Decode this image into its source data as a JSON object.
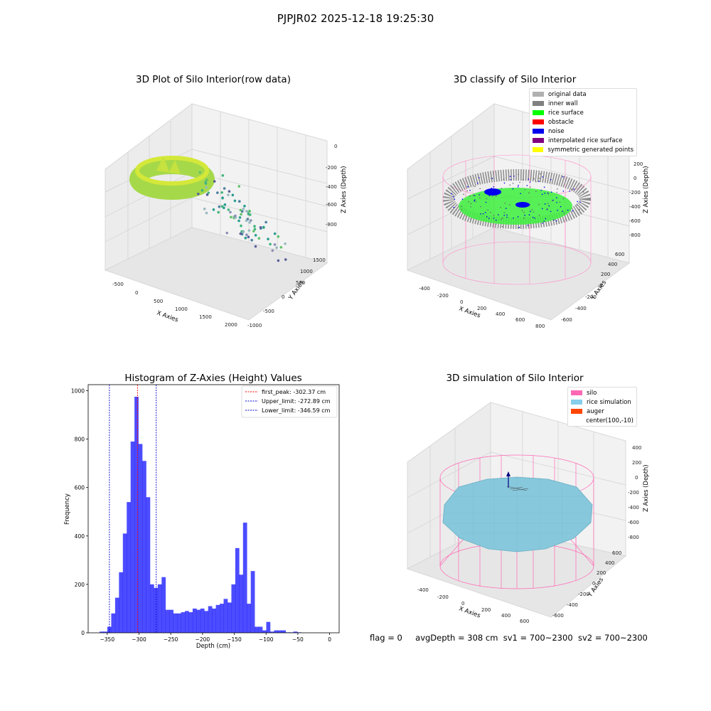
{
  "figure": {
    "title": "PJPJR02 2025-12-18 19:25:30",
    "footer": {
      "flag": "flag = 0",
      "avg": "avgDepth = 308 cm",
      "sv1": "sv1 = 700~2300",
      "sv2": "sv2 = 700~2300"
    }
  },
  "panels": {
    "raw": {
      "title": "3D Plot of Silo Interior(row data)",
      "xlabel": "X Axies",
      "ylabel": "Y Axies",
      "zlabel": "Z Axies (Depth)",
      "xticks": [
        "-500",
        "0",
        "500",
        "1000",
        "1500",
        "2000"
      ],
      "yticks": [
        "-1000",
        "-500",
        "0",
        "500",
        "1000",
        "1500"
      ],
      "zticks": [
        "0",
        "-200",
        "-400",
        "-600",
        "-800"
      ]
    },
    "classify": {
      "title": "3D classify of Silo Interior",
      "xlabel": "X Axies",
      "ylabel": "Y Axies",
      "zlabel": "Z Axies (Depth)",
      "xticks": [
        "-400",
        "-200",
        "0",
        "200",
        "400",
        "600",
        "800"
      ],
      "yticks": [
        "-600",
        "-400",
        "-200",
        "0",
        "200",
        "400",
        "600"
      ],
      "zticks": [
        "200",
        "0",
        "-200",
        "-400",
        "-600",
        "-800"
      ],
      "legend": [
        {
          "label": "original data",
          "color": "#b0b0b0"
        },
        {
          "label": "inner wall",
          "color": "#808080"
        },
        {
          "label": "rice surface",
          "color": "#00ff00"
        },
        {
          "label": "obstacle",
          "color": "#ff0000"
        },
        {
          "label": "noise",
          "color": "#0000ee"
        },
        {
          "label": "interpolated rice surface",
          "color": "#800080"
        },
        {
          "label": "symmetric generated points",
          "color": "#ffff00"
        }
      ]
    },
    "simulation": {
      "title": "3D simulation of Silo Interior",
      "xlabel": "X Axies",
      "ylabel": "Y Axies",
      "zlabel": "Z Axies (Depth)",
      "xticks": [
        "-400",
        "-200",
        "0",
        "200",
        "400",
        "600"
      ],
      "yticks": [
        "-600",
        "-400",
        "-200",
        "0",
        "200",
        "400",
        "600"
      ],
      "zticks": [
        "400",
        "200",
        "0",
        "-200",
        "-400",
        "-600",
        "-800"
      ],
      "legend": [
        {
          "label": "silo",
          "color": "#ff69b4"
        },
        {
          "label": "rice simulation",
          "color": "#87ceeb"
        },
        {
          "label": "auger",
          "color": "#ff4500"
        },
        {
          "label": "center(100,-10)",
          "color": ""
        }
      ]
    }
  },
  "chart_data": [
    {
      "type": "bar",
      "title": "Histogram of Z-Axies (Height) Values",
      "xlabel": "Depth (cm)",
      "ylabel": "Frequency",
      "xlim": [
        -380,
        15
      ],
      "ylim": [
        0,
        1025
      ],
      "xticks": [
        -350,
        -300,
        -250,
        -200,
        -150,
        -100,
        -50,
        0
      ],
      "yticks": [
        0,
        200,
        400,
        600,
        800,
        1000
      ],
      "bar_color": "#0000ff",
      "bins_start": -362,
      "bin_width": 6.1,
      "values": [
        5,
        5,
        25,
        80,
        145,
        250,
        410,
        540,
        790,
        975,
        780,
        710,
        560,
        200,
        185,
        200,
        230,
        95,
        95,
        80,
        80,
        85,
        90,
        85,
        100,
        95,
        100,
        90,
        110,
        100,
        115,
        120,
        140,
        125,
        200,
        350,
        240,
        455,
        120,
        255,
        25,
        25,
        10,
        45,
        5,
        10,
        10,
        10,
        2,
        2,
        5,
        2
      ],
      "vlines": [
        {
          "x": -302.37,
          "color": "#ff0000",
          "label": "first_peak: -302.37 cm"
        },
        {
          "x": -272.89,
          "color": "#0000cc",
          "label": "Upper_limit: -272.89 cm"
        },
        {
          "x": -346.59,
          "color": "#0000cc",
          "label": "Lower_limit: -346.59 cm"
        }
      ]
    }
  ]
}
